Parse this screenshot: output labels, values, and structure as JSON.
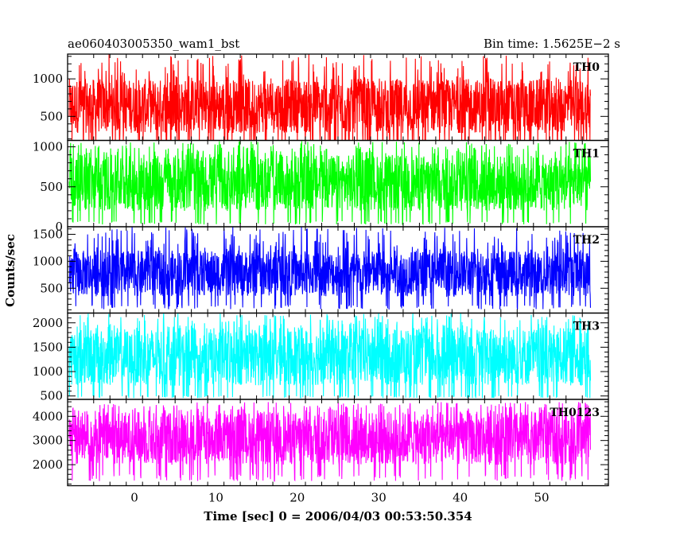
{
  "chart_data": {
    "type": "line",
    "title_left": "ae060403005350_wam1_bst",
    "title_right": "Bin time: 1.5625E−2 s",
    "xlabel": "Time [sec] 0 = 2006/04/03 00:53:50.354",
    "ylabel": "Counts/sec",
    "xlim": [
      -8.2,
      58.2
    ],
    "xticks": [
      0,
      10,
      20,
      30,
      40,
      50
    ],
    "data_x_range": [
      -8.0,
      56.0
    ],
    "bin_time": 0.015625,
    "panels": [
      {
        "name": "TH0",
        "color": "#ff0000",
        "ylim": [
          180,
          1330
        ],
        "yticks": [
          500,
          1000
        ],
        "typical_range": [
          150,
          1000
        ],
        "mean": 560,
        "peak": 1330
      },
      {
        "name": "TH1",
        "color": "#00ff00",
        "ylim": [
          0,
          1080
        ],
        "yticks": [
          0,
          500,
          1000
        ],
        "typical_range": [
          70,
          900
        ],
        "mean": 470,
        "peak": 1070
      },
      {
        "name": "TH2",
        "color": "#0000ff",
        "ylim": [
          40,
          1640
        ],
        "yticks": [
          500,
          1000,
          1500
        ],
        "typical_range": [
          200,
          1200
        ],
        "mean": 700,
        "peak": 1640
      },
      {
        "name": "TH3",
        "color": "#00ffff",
        "ylim": [
          430,
          2200
        ],
        "yticks": [
          500,
          1000,
          1500,
          2000
        ],
        "typical_range": [
          500,
          1900
        ],
        "mean": 1200,
        "peak": 2200
      },
      {
        "name": "TH0123",
        "color": "#ff00ff",
        "ylim": [
          1130,
          4700
        ],
        "yticks": [
          2000,
          3000,
          4000
        ],
        "typical_range": [
          1600,
          4200
        ],
        "mean": 2900,
        "peak": 4600
      }
    ]
  }
}
